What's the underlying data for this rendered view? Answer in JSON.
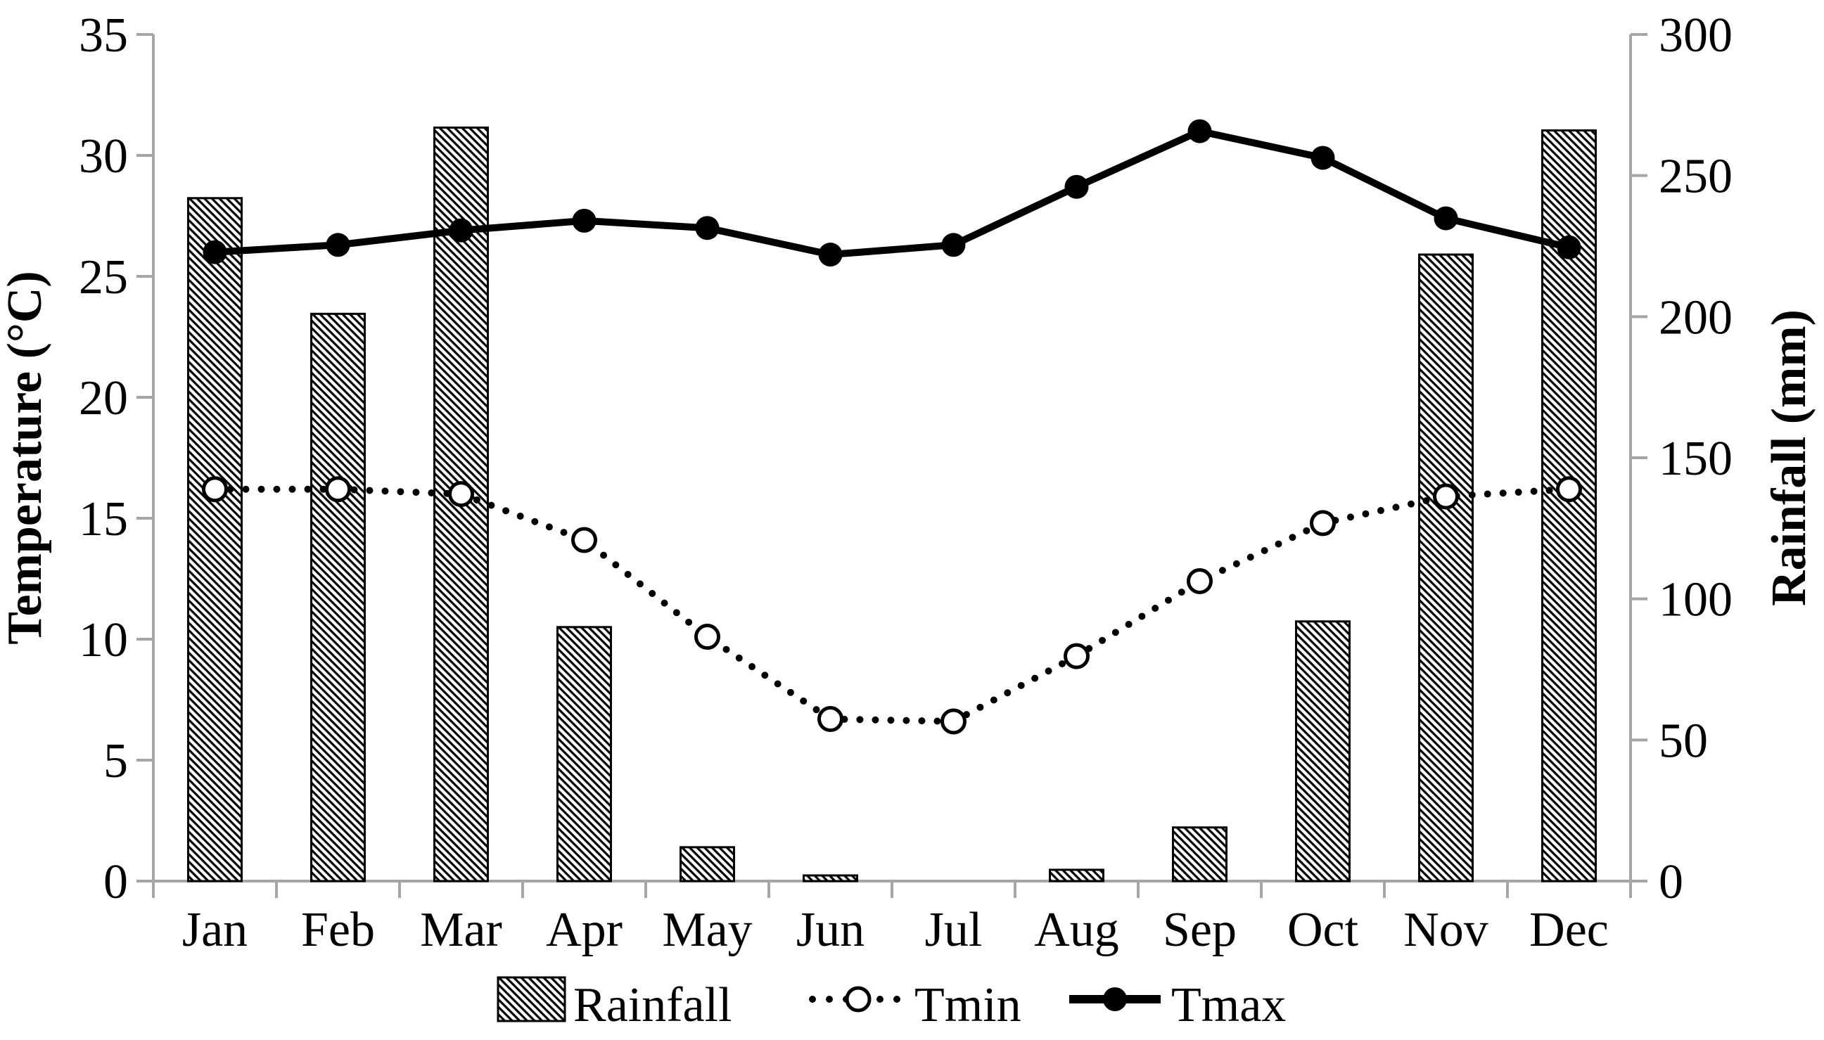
{
  "chart_data": {
    "type": "bar",
    "subtype": "combo-bar-line-climograph",
    "categories": [
      "Jan",
      "Feb",
      "Mar",
      "Apr",
      "May",
      "Jun",
      "Jul",
      "Aug",
      "Sep",
      "Oct",
      "Nov",
      "Dec"
    ],
    "series": [
      {
        "name": "Rainfall",
        "kind": "bar",
        "axis": "right",
        "marker": "hatched-bar",
        "values": [
          242,
          201,
          267,
          90,
          12,
          2,
          0,
          4,
          19,
          92,
          222,
          266
        ]
      },
      {
        "name": "Tmin",
        "kind": "line",
        "axis": "left",
        "marker": "open-circle",
        "line_style": "dotted",
        "values": [
          16.2,
          16.2,
          16.0,
          14.1,
          10.1,
          6.7,
          6.6,
          9.3,
          12.4,
          14.8,
          15.9,
          16.2
        ]
      },
      {
        "name": "Tmax",
        "kind": "line",
        "axis": "left",
        "marker": "filled-circle",
        "line_style": "solid",
        "values": [
          26.0,
          26.3,
          26.9,
          27.3,
          27.0,
          25.9,
          26.3,
          28.7,
          31.0,
          29.9,
          27.4,
          26.2
        ]
      }
    ],
    "left_axis": {
      "label": "Temperature (°C)",
      "min": 0,
      "max": 35,
      "step": 5,
      "ticks": [
        "0",
        "5",
        "10",
        "15",
        "20",
        "25",
        "30",
        "35"
      ]
    },
    "right_axis": {
      "label": "Rainfall (mm)",
      "min": 0,
      "max": 300,
      "step": 50,
      "ticks": [
        "0",
        "50",
        "100",
        "150",
        "200",
        "250",
        "300"
      ]
    },
    "x_axis": {
      "ticks": [
        "Jan",
        "Feb",
        "Mar",
        "Apr",
        "May",
        "Jun",
        "Jul",
        "Aug",
        "Sep",
        "Oct",
        "Nov",
        "Dec"
      ]
    },
    "legend": {
      "position": "bottom",
      "entries": [
        "Rainfall",
        "Tmin",
        "Tmax"
      ]
    },
    "grid": false,
    "colors": {
      "series_color": "#000000",
      "axis_line": "#a6a6a6",
      "background": "#ffffff"
    }
  }
}
